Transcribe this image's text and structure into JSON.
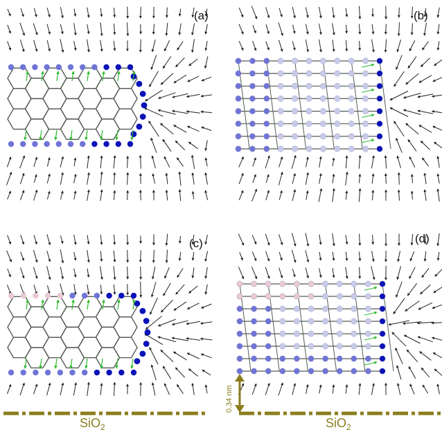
{
  "panels": [
    {
      "id": "a",
      "label": "(a)",
      "view": "top",
      "tip": "right"
    },
    {
      "id": "b",
      "label": "(b)",
      "view": "side",
      "tip": "right"
    },
    {
      "id": "c",
      "label": "(c)",
      "view": "top",
      "tip": "right",
      "substrate": true
    },
    {
      "id": "d",
      "label": "(d)",
      "view": "side",
      "tip": "right",
      "substrate": true,
      "gap": true
    }
  ],
  "substrate": {
    "label_main": "SiO",
    "label_sub": "2"
  },
  "gap_label": "0.34 nm",
  "colors": {
    "substrate": "#8b7d1e",
    "arrow": "#222222",
    "bond": "#555b55",
    "atom_dark": "#0a12b8",
    "atom_mid": "#6f74d6",
    "atom_light": "#c8cbe8",
    "atom_pink": "#eac9d0",
    "green_arrow": "#2dbb2d"
  }
}
